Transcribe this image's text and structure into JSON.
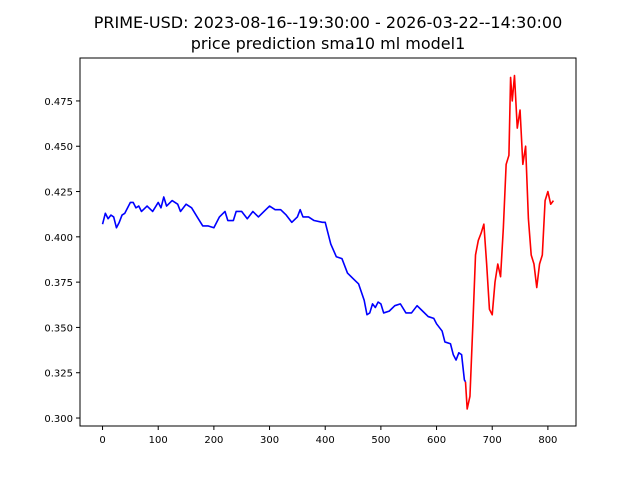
{
  "chart_data": {
    "type": "line",
    "title": "PRIME-USD: 2023-08-16--19:30:00 - 2026-03-22--14:30:00",
    "subtitle": "price prediction sma10 ml model1",
    "series": [
      {
        "color": "#0000ff",
        "x": [
          0,
          5,
          10,
          15,
          20,
          25,
          30,
          35,
          40,
          50,
          55,
          60,
          65,
          70,
          80,
          90,
          100,
          105,
          110,
          115,
          125,
          135,
          140,
          150,
          160,
          170,
          180,
          190,
          200,
          210,
          220,
          225,
          235,
          240,
          250,
          260,
          270,
          280,
          290,
          300,
          310,
          320,
          330,
          340,
          350,
          355,
          360,
          370,
          380,
          395,
          400,
          410,
          420,
          430,
          440,
          450,
          460,
          470,
          475,
          480,
          485,
          490,
          495,
          500,
          505,
          515,
          525,
          535,
          545,
          555,
          565,
          575,
          585,
          595,
          600,
          610,
          615,
          625,
          630,
          635,
          640,
          645,
          650,
          652
        ],
        "values": [
          0.407,
          0.413,
          0.41,
          0.412,
          0.411,
          0.405,
          0.408,
          0.412,
          0.413,
          0.419,
          0.419,
          0.416,
          0.417,
          0.414,
          0.417,
          0.414,
          0.419,
          0.416,
          0.422,
          0.417,
          0.42,
          0.418,
          0.414,
          0.418,
          0.416,
          0.411,
          0.406,
          0.406,
          0.405,
          0.411,
          0.414,
          0.409,
          0.409,
          0.414,
          0.414,
          0.41,
          0.414,
          0.411,
          0.414,
          0.417,
          0.415,
          0.415,
          0.412,
          0.408,
          0.411,
          0.415,
          0.411,
          0.411,
          0.409,
          0.408,
          0.408,
          0.396,
          0.389,
          0.388,
          0.38,
          0.377,
          0.374,
          0.365,
          0.357,
          0.358,
          0.363,
          0.361,
          0.364,
          0.363,
          0.358,
          0.359,
          0.362,
          0.363,
          0.358,
          0.358,
          0.362,
          0.359,
          0.356,
          0.355,
          0.352,
          0.348,
          0.342,
          0.341,
          0.335,
          0.332,
          0.336,
          0.335,
          0.321,
          0.32
        ]
      },
      {
        "color": "#ff0000",
        "x": [
          652,
          655,
          660,
          665,
          670,
          675,
          680,
          685,
          690,
          695,
          700,
          705,
          710,
          715,
          720,
          725,
          730,
          733,
          736,
          740,
          745,
          750,
          755,
          760,
          765,
          770,
          775,
          780,
          785,
          790,
          795,
          800,
          805,
          810
        ],
        "values": [
          0.32,
          0.305,
          0.312,
          0.35,
          0.39,
          0.398,
          0.402,
          0.407,
          0.385,
          0.36,
          0.357,
          0.375,
          0.385,
          0.378,
          0.405,
          0.44,
          0.445,
          0.488,
          0.475,
          0.489,
          0.46,
          0.47,
          0.44,
          0.45,
          0.41,
          0.39,
          0.385,
          0.372,
          0.385,
          0.39,
          0.42,
          0.425,
          0.418,
          0.42
        ]
      }
    ],
    "xlim": [
      -40.5,
      850.5
    ],
    "ylim": [
      0.2956,
      0.4987
    ],
    "xticks": [
      0,
      100,
      200,
      300,
      400,
      500,
      600,
      700,
      800
    ],
    "yticks": [
      {
        "value": 0.3,
        "label": "0.300"
      },
      {
        "value": 0.325,
        "label": "0.325"
      },
      {
        "value": 0.35,
        "label": "0.350"
      },
      {
        "value": 0.375,
        "label": "0.375"
      },
      {
        "value": 0.4,
        "label": "0.400"
      },
      {
        "value": 0.425,
        "label": "0.425"
      },
      {
        "value": 0.45,
        "label": "0.450"
      },
      {
        "value": 0.475,
        "label": "0.475"
      }
    ]
  }
}
